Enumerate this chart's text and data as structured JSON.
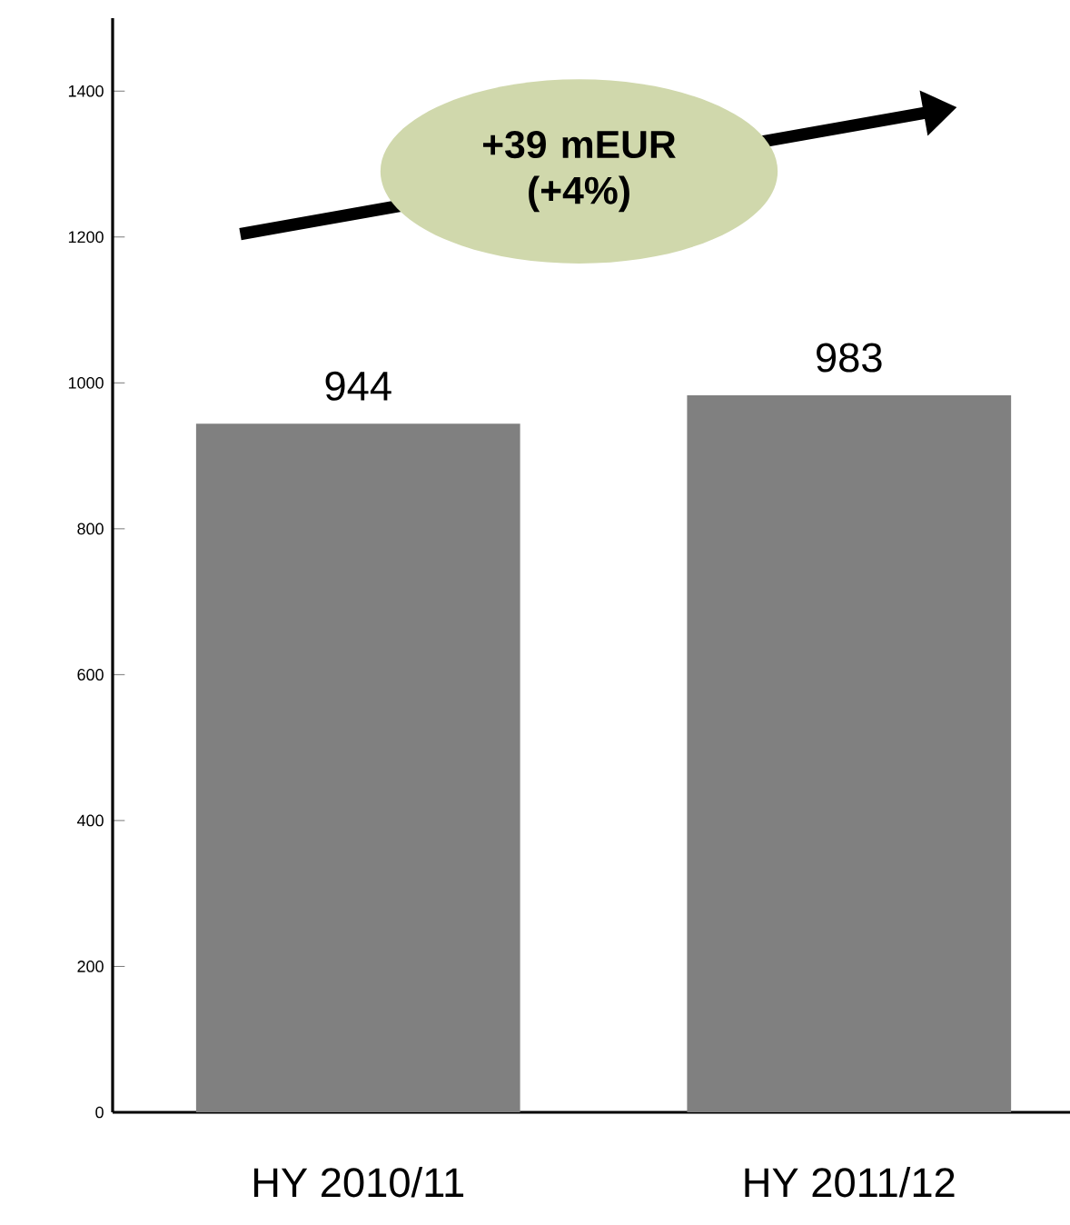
{
  "chart_data": {
    "type": "bar",
    "categories": [
      "HY 2010/11",
      "HY 2011/12"
    ],
    "values": [
      944,
      983
    ],
    "color": "#808080",
    "data_labels": true,
    "ylim": [
      0,
      1500
    ],
    "yticks": [
      0,
      200,
      400,
      600,
      800,
      1000,
      1200,
      1400
    ],
    "grid": false,
    "annotations": [
      "**+39 mEUR (+4%)**"
    ]
  }
}
